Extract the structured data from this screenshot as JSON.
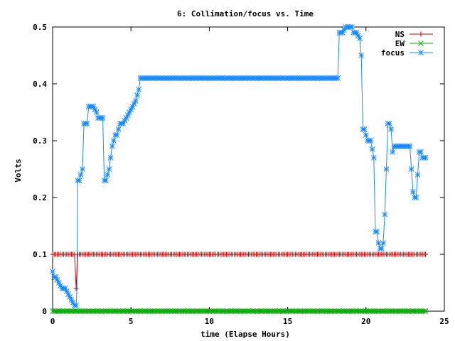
{
  "chart_data": {
    "type": "line",
    "title": "6: Collimation/focus vs. Time",
    "xlabel": "time (Elapse Hours)",
    "ylabel": "Volts",
    "xlim": [
      0,
      25
    ],
    "ylim": [
      0,
      0.5
    ],
    "xticks": [
      0,
      5,
      10,
      15,
      20,
      25
    ],
    "yticks": [
      0,
      0.1,
      0.2,
      0.3,
      0.4,
      0.5
    ],
    "xtick_labels": [
      "0",
      "5",
      "10",
      "15",
      "20",
      "25"
    ],
    "ytick_labels": [
      "0",
      "0.1",
      "0.2",
      "0.3",
      "0.4",
      "0.5"
    ],
    "legend_position": "top-right",
    "grid": false,
    "series": [
      {
        "name": "NS",
        "color": "#cc0000",
        "marker": "plus",
        "x": [
          0,
          1.4,
          1.5,
          1.6,
          1.7,
          23.8
        ],
        "y": [
          0.1,
          0.1,
          0.04,
          0.1,
          0.1,
          0.1
        ]
      },
      {
        "name": "EW",
        "color": "#00aa00",
        "marker": "cross",
        "x": [
          0,
          23.8
        ],
        "y": [
          0,
          0
        ]
      },
      {
        "name": "focus",
        "color": "#1a8cff",
        "marker": "star",
        "x": [
          0,
          0.1,
          0.2,
          0.4,
          0.6,
          0.8,
          1.0,
          1.2,
          1.4,
          1.5,
          1.55,
          1.6,
          1.7,
          1.8,
          1.9,
          2.0,
          2.1,
          2.2,
          2.3,
          2.4,
          2.6,
          2.8,
          2.9,
          3.0,
          3.2,
          3.3,
          3.4,
          3.5,
          3.6,
          3.7,
          3.8,
          3.9,
          4.0,
          4.1,
          4.2,
          4.3,
          4.5,
          4.7,
          4.9,
          5.1,
          5.3,
          5.5,
          5.6,
          5.65,
          10.0,
          15.0,
          18.2,
          18.3,
          18.5,
          18.7,
          18.9,
          19.1,
          19.2,
          19.4,
          19.6,
          19.7,
          19.8,
          19.9,
          20.0,
          20.1,
          20.3,
          20.5,
          20.6,
          20.7,
          20.8,
          20.9,
          21.0,
          21.1,
          21.2,
          21.4,
          21.5,
          21.6,
          21.7,
          21.8,
          21.9,
          22.0,
          22.2,
          22.5,
          22.8,
          23.0,
          23.1,
          23.2,
          23.4,
          23.5,
          23.6,
          23.7,
          23.8
        ],
        "y": [
          0.07,
          0.06,
          0.06,
          0.05,
          0.04,
          0.04,
          0.03,
          0.02,
          0.01,
          0.01,
          0.04,
          0.23,
          0.23,
          0.24,
          0.25,
          0.33,
          0.33,
          0.33,
          0.36,
          0.36,
          0.36,
          0.35,
          0.34,
          0.34,
          0.34,
          0.23,
          0.23,
          0.24,
          0.25,
          0.27,
          0.29,
          0.3,
          0.31,
          0.31,
          0.32,
          0.33,
          0.33,
          0.34,
          0.35,
          0.36,
          0.37,
          0.39,
          0.41,
          0.41,
          0.41,
          0.41,
          0.41,
          0.49,
          0.49,
          0.5,
          0.5,
          0.5,
          0.49,
          0.49,
          0.48,
          0.45,
          0.32,
          0.32,
          0.31,
          0.3,
          0.3,
          0.27,
          0.14,
          0.14,
          0.12,
          0.11,
          0.11,
          0.12,
          0.17,
          0.33,
          0.33,
          0.32,
          0.28,
          0.29,
          0.29,
          0.29,
          0.29,
          0.29,
          0.29,
          0.21,
          0.2,
          0.2,
          0.28,
          0.28,
          0.27,
          0.27,
          0.27
        ]
      }
    ]
  }
}
